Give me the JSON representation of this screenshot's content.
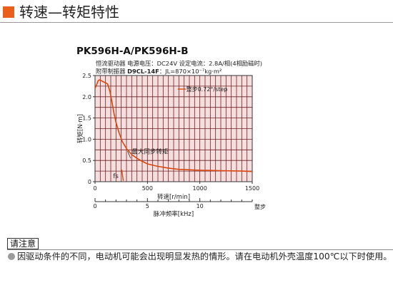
{
  "header": {
    "title": "转速—转矩特性",
    "accent_color": "#e8601c"
  },
  "model": "PK596H-A/PK596H-B",
  "specs": {
    "line1": "恒流驱动器  电源电压：DC24V  设定电流：2.8A/相(4相励磁时)",
    "line2_prefix": "附带制振器 ",
    "line2_driver": "D9CL-14F",
    "line2_suffix": "：JL=870×10⁻⁷kg·m²"
  },
  "chart_data": {
    "type": "line",
    "ylabel": "转矩[N·m]",
    "xlabel": "转速[r/min]",
    "x2label": "脉冲频率[kHz]",
    "x2_note": "整步",
    "xlim": [
      0,
      1500
    ],
    "ylim": [
      0,
      2.5
    ],
    "x_ticks": [
      0,
      500,
      1000,
      1500
    ],
    "y_ticks": [
      0,
      0.5,
      1.0,
      1.5,
      2.0,
      2.5
    ],
    "y_tick_labels": [
      "0",
      "0.5",
      "1.0",
      "1.5",
      "2.0",
      "2.5"
    ],
    "x2_ticks": [
      0,
      5,
      10
    ],
    "x2lim": [
      0,
      15
    ],
    "grid": true,
    "background_color": "#f7dede",
    "grid_color": "#6b2222",
    "line_color": "#d9480f",
    "legend": {
      "label": "整步0.72°/step",
      "position": "top-right"
    },
    "annotations": {
      "curve_label": "最大同步转矩",
      "fs_label": "fs"
    },
    "series": [
      {
        "name": "整步0.72°/step",
        "x": [
          0,
          15,
          30,
          45,
          60,
          80,
          100,
          120,
          140,
          160,
          180,
          200,
          230,
          260,
          300,
          350,
          400,
          450,
          500,
          600,
          700,
          800,
          900,
          1000,
          1100,
          1200,
          1300,
          1400,
          1500
        ],
        "y": [
          2.2,
          2.28,
          2.38,
          2.4,
          2.38,
          2.35,
          2.33,
          2.3,
          2.15,
          1.9,
          1.62,
          1.4,
          1.15,
          0.95,
          0.78,
          0.64,
          0.55,
          0.48,
          0.42,
          0.36,
          0.32,
          0.29,
          0.28,
          0.27,
          0.265,
          0.26,
          0.255,
          0.25,
          0.24
        ]
      }
    ],
    "fs_marker": {
      "x": [
        255,
        270
      ],
      "y": [
        0.28,
        0.02
      ]
    }
  },
  "notice": {
    "label": "请注意",
    "text": "因驱动条件的不同，电动机可能会出现明显发热的情形。请在电动机外壳温度100℃以下时使用。"
  }
}
